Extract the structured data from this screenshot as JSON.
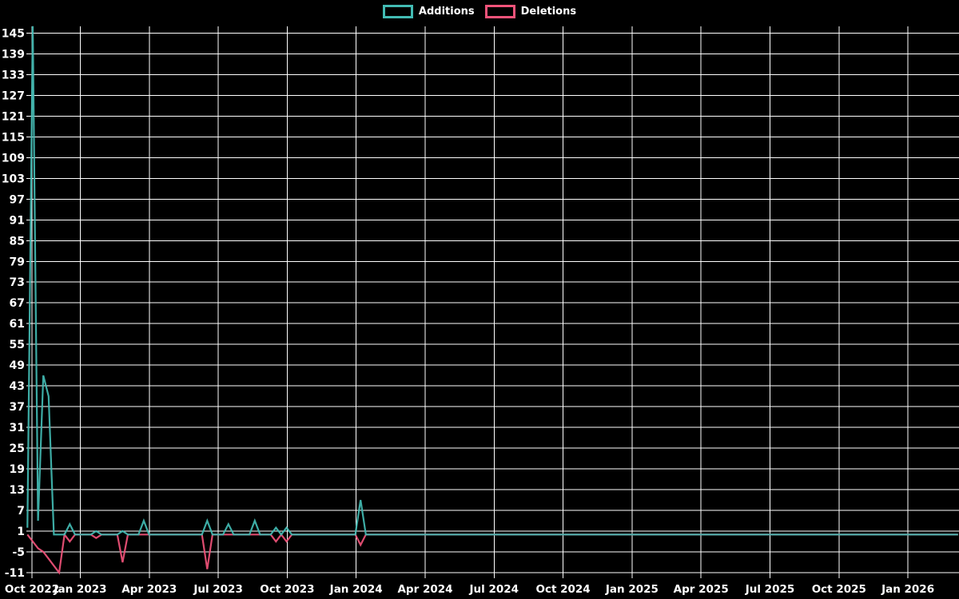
{
  "colors": {
    "background": "#000000",
    "grid": "#ffffff",
    "text": "#ffffff",
    "additions": "#42bbb3",
    "deletions": "#f1537a"
  },
  "chart_data": {
    "type": "line",
    "title": "",
    "legend_position": "top-center",
    "grid": true,
    "x_axis": {
      "tick_labels": [
        "Oct 2022",
        "Jan 2023",
        "Apr 2023",
        "Jul 2023",
        "Oct 2023",
        "Jan 2024",
        "Apr 2024",
        "Jul 2024",
        "Oct 2024",
        "Jan 2025",
        "Apr 2025",
        "Jul 2025",
        "Oct 2025",
        "Jan 2026"
      ],
      "interval": "weekly",
      "start_week": "2022-10-23",
      "end_week": "2026-03-08"
    },
    "y_axis": {
      "tick_labels": [
        145,
        139,
        133,
        127,
        121,
        115,
        109,
        103,
        97,
        91,
        85,
        79,
        73,
        67,
        61,
        55,
        49,
        43,
        37,
        31,
        25,
        19,
        13,
        7,
        1,
        -5,
        -11
      ],
      "tick_step": 6,
      "min": -11,
      "max": 147
    },
    "series": [
      {
        "name": "Additions",
        "color": "#42bbb3"
      },
      {
        "name": "Deletions",
        "color": "#f1537a"
      }
    ],
    "default_week": {
      "additions": 0,
      "deletions": 0
    },
    "weekly_events": [
      {
        "date": "2022-10-23",
        "additions": 2,
        "deletions": 0
      },
      {
        "date": "2022-10-30",
        "additions": 147,
        "deletions": -2
      },
      {
        "date": "2022-11-06",
        "additions": 4,
        "deletions": -4
      },
      {
        "date": "2022-11-13",
        "additions": 46,
        "deletions": -5
      },
      {
        "date": "2022-11-20",
        "additions": 40,
        "deletions": -7
      },
      {
        "date": "2022-11-27",
        "additions": 0,
        "deletions": -9
      },
      {
        "date": "2022-12-04",
        "additions": 0,
        "deletions": -11
      },
      {
        "date": "2022-12-11",
        "additions": 0,
        "deletions": 0
      },
      {
        "date": "2022-12-18",
        "additions": 3,
        "deletions": -2
      },
      {
        "date": "2023-01-22",
        "additions": 1,
        "deletions": -1
      },
      {
        "date": "2023-02-26",
        "additions": 1,
        "deletions": -8
      },
      {
        "date": "2023-03-26",
        "additions": 4,
        "deletions": 0
      },
      {
        "date": "2023-06-18",
        "additions": 4,
        "deletions": -10
      },
      {
        "date": "2023-07-16",
        "additions": 3,
        "deletions": 0
      },
      {
        "date": "2023-08-20",
        "additions": 4,
        "deletions": 0
      },
      {
        "date": "2023-09-17",
        "additions": 2,
        "deletions": -2
      },
      {
        "date": "2023-10-01",
        "additions": 2,
        "deletions": -2
      },
      {
        "date": "2024-01-07",
        "additions": 10,
        "deletions": -3
      }
    ]
  }
}
